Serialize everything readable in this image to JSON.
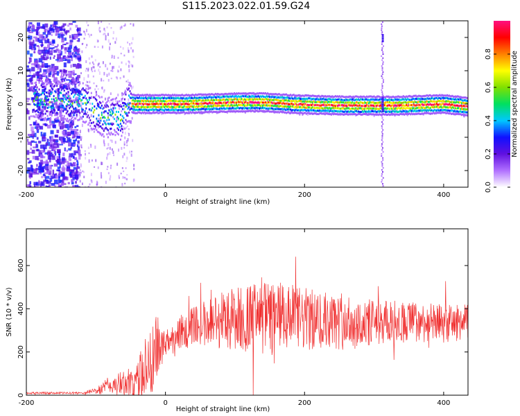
{
  "figure": {
    "title": "S115.2023.022.01.59.G24"
  },
  "chart_data": [
    {
      "type": "heatmap",
      "xlabel": "Height of straight line (km)",
      "ylabel": "Frequency (Hz)",
      "xlim": [
        -200,
        435
      ],
      "ylim": [
        -25,
        25
      ],
      "x_ticks": [
        "-200",
        "0",
        "200",
        "400"
      ],
      "y_ticks": [
        "-20",
        "-10",
        "0",
        "10",
        "20"
      ],
      "colorbar": {
        "label": "Normalized spectral amplitude",
        "range": [
          0,
          1
        ],
        "ticks": [
          "0.0",
          "0.2",
          "0.4",
          "0.6",
          "0.8"
        ],
        "colors": [
          "#ffffff",
          "#b070ff",
          "#6010e0",
          "#1010ff",
          "#00c8ff",
          "#00e060",
          "#80e000",
          "#ffff00",
          "#ff8000",
          "#ff0000",
          "#ff1080"
        ]
      },
      "trace": {
        "x": [
          -185,
          -170,
          -155,
          -140,
          -125,
          -115,
          -105,
          -95,
          -85,
          -75,
          -65,
          -55,
          -45,
          -20,
          0,
          30,
          60,
          100,
          140,
          180,
          220,
          260,
          300,
          315,
          330,
          360,
          400,
          435
        ],
        "y": [
          1.5,
          1.0,
          1.5,
          0.5,
          1.0,
          0.0,
          -2.0,
          -3.5,
          -4.5,
          -3.0,
          -5.0,
          0.5,
          0.0,
          0.0,
          0.0,
          0.0,
          0.2,
          0.5,
          0.5,
          0.0,
          -0.3,
          -0.5,
          -0.5,
          -0.5,
          -0.5,
          -0.3,
          0.0,
          -0.8
        ]
      },
      "spike": {
        "x": 312,
        "y_range": [
          -25,
          25
        ]
      }
    },
    {
      "type": "line",
      "xlabel": "Height of straight line (km)",
      "ylabel": "SNR (10 * v/v)",
      "xlim": [
        -200,
        435
      ],
      "ylim": [
        0,
        770
      ],
      "x_ticks": [
        "-200",
        "0",
        "200",
        "400"
      ],
      "y_ticks": [
        "0",
        "200",
        "400",
        "600"
      ],
      "series_color": "#f03030",
      "envelope": {
        "x": [
          -200,
          -150,
          -120,
          -100,
          -80,
          -60,
          -40,
          -25,
          -12,
          0,
          20,
          50,
          80,
          120,
          160,
          200,
          240,
          280,
          320,
          360,
          400,
          435
        ],
        "base": [
          10,
          10,
          10,
          20,
          45,
          55,
          60,
          150,
          220,
          240,
          290,
          330,
          350,
          360,
          360,
          350,
          340,
          330,
          340,
          340,
          330,
          340
        ],
        "amp": [
          5,
          5,
          5,
          15,
          45,
          60,
          90,
          180,
          150,
          70,
          80,
          100,
          140,
          160,
          170,
          150,
          130,
          120,
          100,
          95,
          90,
          80
        ]
      }
    }
  ]
}
